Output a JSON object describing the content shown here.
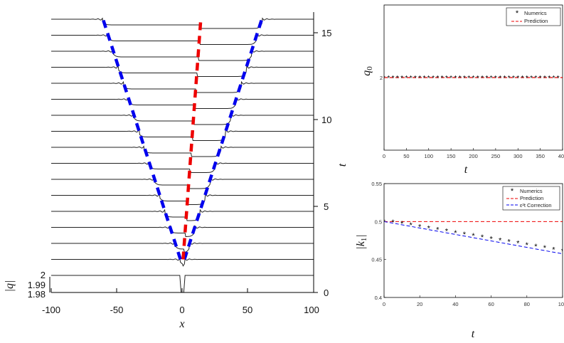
{
  "chart_data": [
    {
      "type": "line",
      "panel": "left",
      "xlabel": "x",
      "ylabel_left": "|q|",
      "ylabel_right": "t",
      "xlim": [
        -100,
        100
      ],
      "x_ticks": [
        "-100",
        "-50",
        "0",
        "50",
        "100"
      ],
      "left_ticks": [
        "2",
        "1.99",
        "1.98"
      ],
      "t_ticks": [
        "0",
        "5",
        "10",
        "15"
      ],
      "t_range": [
        0,
        16
      ],
      "profile_times": [
        0,
        1,
        2,
        3,
        4,
        5,
        6,
        7,
        8,
        9,
        10,
        11,
        12,
        13,
        14,
        15,
        16
      ],
      "series": [
        {
          "color": "#0000ee",
          "x": [
            -1.5,
            -60.5
          ],
          "t": [
            1,
            16
          ]
        },
        {
          "color": "#0000ee",
          "x": [
            1.5,
            60.5
          ],
          "t": [
            1,
            16
          ]
        },
        {
          "color": "#ee0000",
          "x": [
            0.5,
            14
          ],
          "t": [
            1,
            16
          ]
        }
      ]
    },
    {
      "type": "scatter",
      "panel": "top-right",
      "xlabel": "t",
      "ylabel": "q_0",
      "xlim": [
        0,
        400
      ],
      "x_ticks": [
        "0",
        "50",
        "100",
        "150",
        "200",
        "250",
        "300",
        "350",
        "400"
      ],
      "y_ticks": [
        "2"
      ],
      "legend": "top-right",
      "series": [
        {
          "name": "Numerics",
          "marker": "*",
          "color": "#000000",
          "x": [
            0,
            10,
            20,
            30,
            40,
            50,
            60,
            70,
            80,
            90,
            100,
            110,
            120,
            130,
            140,
            150,
            160,
            170,
            180,
            190,
            200,
            210,
            220,
            230,
            240,
            250,
            260,
            270,
            280,
            290,
            300,
            310,
            320,
            330,
            340,
            350,
            360,
            370,
            380,
            390
          ],
          "y": [
            2,
            2,
            2,
            2,
            2,
            2,
            2,
            2,
            2,
            2,
            2,
            2,
            2,
            2,
            2,
            2,
            2,
            2,
            2,
            2,
            2,
            2,
            2,
            2,
            2,
            2,
            2,
            2,
            2,
            2,
            2,
            2,
            2,
            2,
            2,
            2,
            2,
            2,
            2,
            2
          ]
        },
        {
          "name": "Prediction",
          "line": "dashed",
          "color": "#ee0000",
          "x": [
            0,
            400
          ],
          "y": [
            2,
            2
          ]
        }
      ]
    },
    {
      "type": "scatter",
      "panel": "bottom-right",
      "xlabel": "t",
      "ylabel": "|k_1|",
      "xlim": [
        0,
        100
      ],
      "ylim": [
        0.4,
        0.55
      ],
      "x_ticks": [
        "0",
        "20",
        "40",
        "60",
        "80",
        "100"
      ],
      "y_ticks": [
        "0.55",
        "0.5",
        "0.45",
        "0.4"
      ],
      "legend": "top-right",
      "series": [
        {
          "name": "Numerics",
          "marker": "*",
          "color": "#000000",
          "x": [
            0,
            5,
            10,
            15,
            20,
            25,
            30,
            35,
            40,
            45,
            50,
            55,
            60,
            65,
            70,
            75,
            80,
            85,
            90,
            95,
            100
          ],
          "y": [
            0.5,
            0.4995,
            0.4975,
            0.4955,
            0.4935,
            0.4915,
            0.4895,
            0.4875,
            0.4855,
            0.4835,
            0.4815,
            0.4795,
            0.4775,
            0.4755,
            0.4735,
            0.4715,
            0.4695,
            0.4675,
            0.4655,
            0.4635,
            0.4615
          ]
        },
        {
          "name": "Prediction",
          "line": "dashed",
          "color": "#ee0000",
          "x": [
            0,
            100
          ],
          "y": [
            0.5,
            0.5
          ]
        },
        {
          "name": "ε²t Correction",
          "line": "dashed",
          "color": "#0000ee",
          "x": [
            0,
            100
          ],
          "y": [
            0.5,
            0.4575
          ]
        }
      ]
    }
  ]
}
